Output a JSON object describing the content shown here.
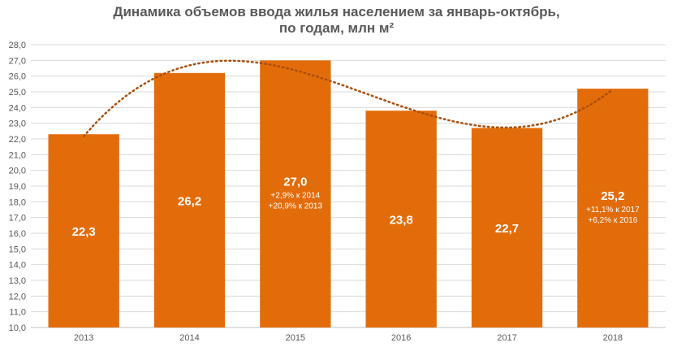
{
  "chart_data": {
    "type": "bar",
    "title": [
      "Динамика объемов ввода жилья населением за январь-октябрь,",
      "по годам, млн м²"
    ],
    "categories": [
      "2013",
      "2014",
      "2015",
      "2016",
      "2017",
      "2018"
    ],
    "values": [
      22.3,
      26.2,
      27.0,
      23.8,
      22.7,
      25.2
    ],
    "value_labels": [
      "22,3",
      "26,2",
      "27,0",
      "23,8",
      "22,7",
      "25,2"
    ],
    "notes": [
      [],
      [],
      [
        "+2,9% к 2014",
        "+20,9% к 2013"
      ],
      [],
      [],
      [
        "+11,1% к 2017",
        "+6,2% к 2016"
      ]
    ],
    "ylim": [
      10,
      28
    ],
    "yticks": [
      "10,0",
      "11,0",
      "12,0",
      "13,0",
      "14,0",
      "15,0",
      "16,0",
      "17,0",
      "18,0",
      "19,0",
      "20,0",
      "21,0",
      "22,0",
      "23,0",
      "24,0",
      "25,0",
      "26,0",
      "27,0",
      "28,0"
    ],
    "trendline": {
      "type": "polynomial",
      "style": "dotted"
    },
    "grid": true,
    "colors": {
      "bar": "#E36C0A",
      "trend": "#A84E0A",
      "grid": "#D9D9D9",
      "text": "#595959"
    }
  }
}
